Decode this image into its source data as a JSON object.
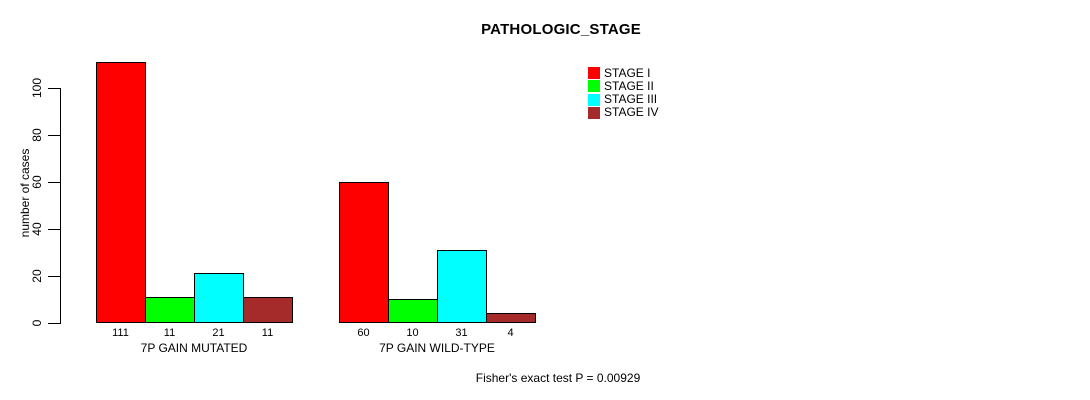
{
  "chart_data": {
    "type": "bar",
    "title": "PATHOLOGIC_STAGE",
    "xlabel": "",
    "ylabel": "number of cases",
    "ylim": [
      0,
      100
    ],
    "yticks": [
      0,
      20,
      40,
      60,
      80,
      100
    ],
    "grid": false,
    "legend_position": "top-right",
    "categories": [
      "7P GAIN MUTATED",
      "7P GAIN WILD-TYPE"
    ],
    "series": [
      {
        "name": "STAGE I",
        "color": "#ff0000",
        "values": [
          111,
          60
        ]
      },
      {
        "name": "STAGE II",
        "color": "#00ff00",
        "values": [
          11,
          10
        ]
      },
      {
        "name": "STAGE III",
        "color": "#00ffff",
        "values": [
          21,
          31
        ]
      },
      {
        "name": "STAGE IV",
        "color": "#a52a2a",
        "values": [
          11,
          4
        ]
      }
    ],
    "bar_value_labels": {
      "7P GAIN MUTATED": [
        111,
        11,
        21,
        11
      ],
      "7P GAIN WILD-TYPE": [
        60,
        10,
        31,
        4
      ]
    },
    "annotation": "Fisher's exact test P = 0.00929",
    "axis_color": "#000000",
    "background_color": "#ffffff"
  }
}
